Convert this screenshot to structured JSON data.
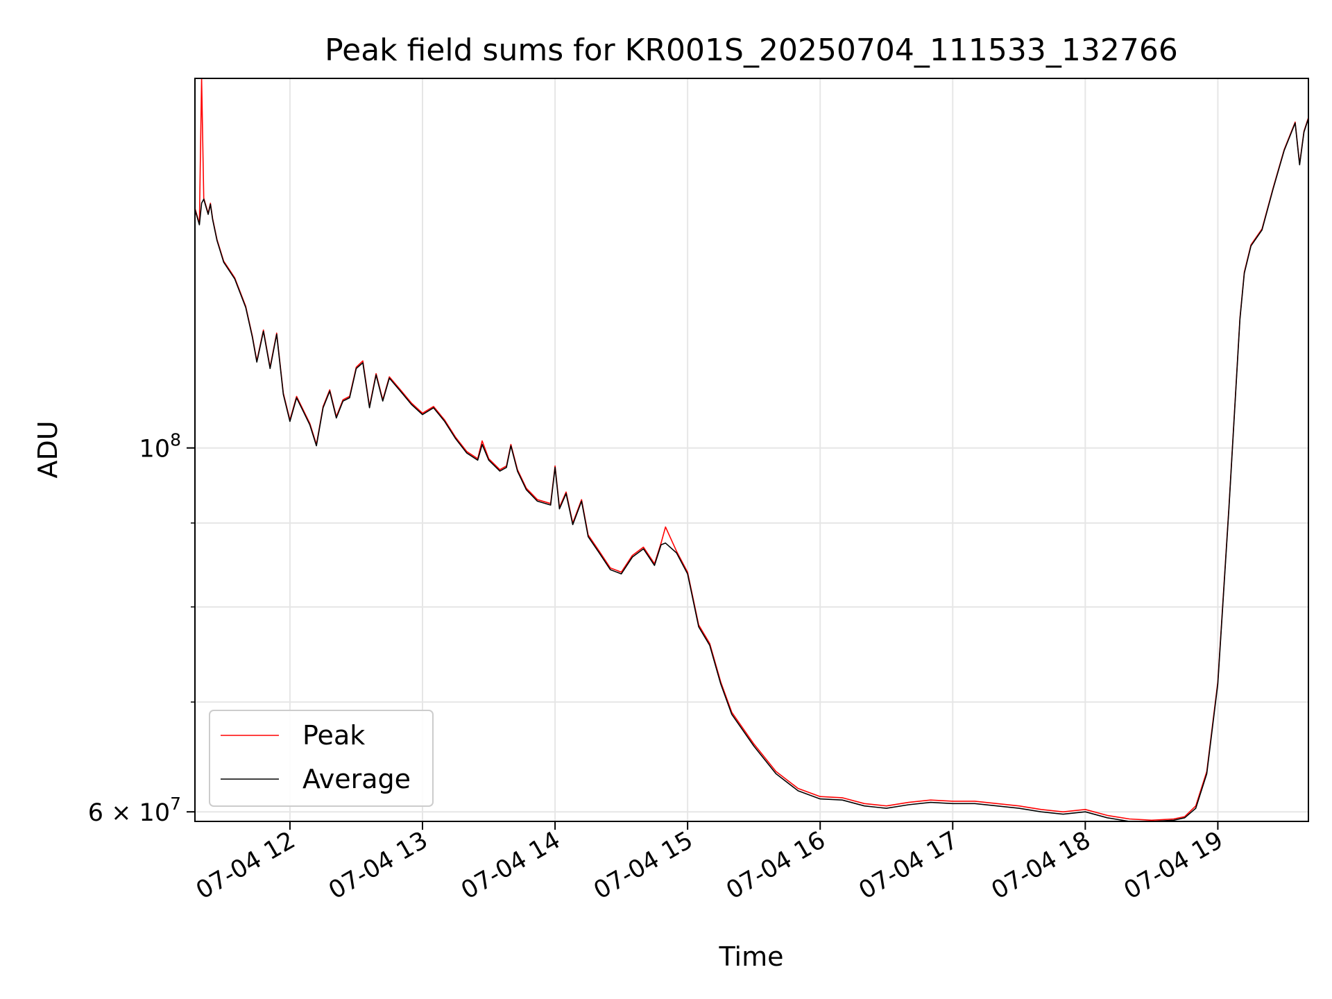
{
  "chart_data": {
    "type": "line",
    "title": "Peak field sums for KR001S_20250704_111533_132766",
    "xlabel": "Time",
    "ylabel": "ADU",
    "yscale": "log",
    "grid": true,
    "legend_position": "lower-left",
    "xlim": [
      "2025-07-04 11:17",
      "2025-07-04 19:41"
    ],
    "ylim": [
      59200000,
      168000000
    ],
    "x_tick_labels": [
      "07-04 12",
      "07-04 13",
      "07-04 14",
      "07-04 15",
      "07-04 16",
      "07-04 17",
      "07-04 18",
      "07-04 19"
    ],
    "y_tick_labels": [
      {
        "value": 100000000,
        "label": "10",
        "exp": "8"
      },
      {
        "value": 60000000,
        "label": "6 × 10",
        "exp": "7"
      }
    ],
    "series": [
      {
        "name": "Peak",
        "color": "#ff0000",
        "points": [
          [
            "2025-07-04 11:17",
            140000000
          ],
          [
            "2025-07-04 11:19",
            137000000
          ],
          [
            "2025-07-04 11:20",
            168000000
          ],
          [
            "2025-07-04 11:21",
            142000000
          ],
          [
            "2025-07-04 11:23",
            139000000
          ],
          [
            "2025-07-04 11:24",
            141000000
          ],
          [
            "2025-07-04 11:25",
            138000000
          ],
          [
            "2025-07-04 11:27",
            134000000
          ],
          [
            "2025-07-04 11:30",
            130000000
          ],
          [
            "2025-07-04 11:35",
            127000000
          ],
          [
            "2025-07-04 11:40",
            122000000
          ],
          [
            "2025-07-04 11:43",
            117000000
          ],
          [
            "2025-07-04 11:45",
            113000000
          ],
          [
            "2025-07-04 11:48",
            118000000
          ],
          [
            "2025-07-04 11:51",
            112000000
          ],
          [
            "2025-07-04 11:54",
            117500000
          ],
          [
            "2025-07-04 11:57",
            108000000
          ],
          [
            "2025-07-04 12:00",
            104000000
          ],
          [
            "2025-07-04 12:03",
            107500000
          ],
          [
            "2025-07-04 12:06",
            105500000
          ],
          [
            "2025-07-04 12:09",
            103500000
          ],
          [
            "2025-07-04 12:12",
            100500000
          ],
          [
            "2025-07-04 12:15",
            106000000
          ],
          [
            "2025-07-04 12:18",
            108500000
          ],
          [
            "2025-07-04 12:21",
            104500000
          ],
          [
            "2025-07-04 12:24",
            107000000
          ],
          [
            "2025-07-04 12:27",
            107500000
          ],
          [
            "2025-07-04 12:30",
            112000000
          ],
          [
            "2025-07-04 12:33",
            113000000
          ],
          [
            "2025-07-04 12:36",
            106000000
          ],
          [
            "2025-07-04 12:39",
            111000000
          ],
          [
            "2025-07-04 12:42",
            107000000
          ],
          [
            "2025-07-04 12:45",
            110500000
          ],
          [
            "2025-07-04 12:50",
            108500000
          ],
          [
            "2025-07-04 12:55",
            106500000
          ],
          [
            "2025-07-04 13:00",
            105000000
          ],
          [
            "2025-07-04 13:05",
            106000000
          ],
          [
            "2025-07-04 13:10",
            104000000
          ],
          [
            "2025-07-04 13:15",
            101500000
          ],
          [
            "2025-07-04 13:20",
            99500000
          ],
          [
            "2025-07-04 13:25",
            98500000
          ],
          [
            "2025-07-04 13:27",
            101000000
          ],
          [
            "2025-07-04 13:30",
            98500000
          ],
          [
            "2025-07-04 13:35",
            97000000
          ],
          [
            "2025-07-04 13:38",
            97500000
          ],
          [
            "2025-07-04 13:40",
            100500000
          ],
          [
            "2025-07-04 13:43",
            97000000
          ],
          [
            "2025-07-04 13:47",
            94500000
          ],
          [
            "2025-07-04 13:52",
            93000000
          ],
          [
            "2025-07-04 13:58",
            92500000
          ],
          [
            "2025-07-04 14:00",
            97500000
          ],
          [
            "2025-07-04 14:02",
            92000000
          ],
          [
            "2025-07-04 14:05",
            94000000
          ],
          [
            "2025-07-04 14:08",
            90000000
          ],
          [
            "2025-07-04 14:12",
            93000000
          ],
          [
            "2025-07-04 14:15",
            88500000
          ],
          [
            "2025-07-04 14:20",
            86500000
          ],
          [
            "2025-07-04 14:25",
            84500000
          ],
          [
            "2025-07-04 14:30",
            84000000
          ],
          [
            "2025-07-04 14:35",
            86000000
          ],
          [
            "2025-07-04 14:40",
            87000000
          ],
          [
            "2025-07-04 14:45",
            85000000
          ],
          [
            "2025-07-04 14:48",
            87500000
          ],
          [
            "2025-07-04 14:50",
            89500000
          ],
          [
            "2025-07-04 14:55",
            86500000
          ],
          [
            "2025-07-04 15:00",
            84000000
          ],
          [
            "2025-07-04 15:05",
            78000000
          ],
          [
            "2025-07-04 15:10",
            76000000
          ],
          [
            "2025-07-04 15:15",
            72000000
          ],
          [
            "2025-07-04 15:20",
            69000000
          ],
          [
            "2025-07-04 15:30",
            66000000
          ],
          [
            "2025-07-04 15:40",
            63500000
          ],
          [
            "2025-07-04 15:50",
            62000000
          ],
          [
            "2025-07-04 16:00",
            61300000
          ],
          [
            "2025-07-04 16:10",
            61200000
          ],
          [
            "2025-07-04 16:20",
            60700000
          ],
          [
            "2025-07-04 16:30",
            60500000
          ],
          [
            "2025-07-04 16:40",
            60800000
          ],
          [
            "2025-07-04 16:50",
            61000000
          ],
          [
            "2025-07-04 17:00",
            60900000
          ],
          [
            "2025-07-04 17:10",
            60900000
          ],
          [
            "2025-07-04 17:20",
            60700000
          ],
          [
            "2025-07-04 17:30",
            60500000
          ],
          [
            "2025-07-04 17:40",
            60200000
          ],
          [
            "2025-07-04 17:50",
            60000000
          ],
          [
            "2025-07-04 18:00",
            60200000
          ],
          [
            "2025-07-04 18:10",
            59700000
          ],
          [
            "2025-07-04 18:20",
            59400000
          ],
          [
            "2025-07-04 18:30",
            59300000
          ],
          [
            "2025-07-04 18:40",
            59400000
          ],
          [
            "2025-07-04 18:45",
            59600000
          ],
          [
            "2025-07-04 18:50",
            60500000
          ],
          [
            "2025-07-04 18:55",
            63500000
          ],
          [
            "2025-07-04 19:00",
            72000000
          ],
          [
            "2025-07-04 19:05",
            92000000
          ],
          [
            "2025-07-04 19:10",
            120000000
          ],
          [
            "2025-07-04 19:12",
            128000000
          ],
          [
            "2025-07-04 19:15",
            133000000
          ],
          [
            "2025-07-04 19:20",
            136000000
          ],
          [
            "2025-07-04 19:25",
            144000000
          ],
          [
            "2025-07-04 19:30",
            152000000
          ],
          [
            "2025-07-04 19:35",
            158000000
          ],
          [
            "2025-07-04 19:37",
            149000000
          ],
          [
            "2025-07-04 19:39",
            156000000
          ],
          [
            "2025-07-04 19:41",
            159000000
          ]
        ]
      },
      {
        "name": "Average",
        "color": "#000000",
        "points": [
          [
            "2025-07-04 11:17",
            139800000
          ],
          [
            "2025-07-04 11:19",
            136800000
          ],
          [
            "2025-07-04 11:20",
            141000000
          ],
          [
            "2025-07-04 11:21",
            141800000
          ],
          [
            "2025-07-04 11:23",
            138800000
          ],
          [
            "2025-07-04 11:24",
            140800000
          ],
          [
            "2025-07-04 11:25",
            137800000
          ],
          [
            "2025-07-04 11:27",
            133800000
          ],
          [
            "2025-07-04 11:30",
            129800000
          ],
          [
            "2025-07-04 11:35",
            126800000
          ],
          [
            "2025-07-04 11:40",
            121800000
          ],
          [
            "2025-07-04 11:43",
            116800000
          ],
          [
            "2025-07-04 11:45",
            112800000
          ],
          [
            "2025-07-04 11:48",
            117800000
          ],
          [
            "2025-07-04 11:51",
            111800000
          ],
          [
            "2025-07-04 11:54",
            117300000
          ],
          [
            "2025-07-04 11:57",
            107800000
          ],
          [
            "2025-07-04 12:00",
            103800000
          ],
          [
            "2025-07-04 12:03",
            107300000
          ],
          [
            "2025-07-04 12:06",
            105300000
          ],
          [
            "2025-07-04 12:09",
            103300000
          ],
          [
            "2025-07-04 12:12",
            100300000
          ],
          [
            "2025-07-04 12:15",
            105800000
          ],
          [
            "2025-07-04 12:18",
            108300000
          ],
          [
            "2025-07-04 12:21",
            104300000
          ],
          [
            "2025-07-04 12:24",
            106800000
          ],
          [
            "2025-07-04 12:27",
            107300000
          ],
          [
            "2025-07-04 12:30",
            111800000
          ],
          [
            "2025-07-04 12:33",
            112700000
          ],
          [
            "2025-07-04 12:36",
            105800000
          ],
          [
            "2025-07-04 12:39",
            110800000
          ],
          [
            "2025-07-04 12:42",
            106800000
          ],
          [
            "2025-07-04 12:45",
            110300000
          ],
          [
            "2025-07-04 12:50",
            108300000
          ],
          [
            "2025-07-04 12:55",
            106300000
          ],
          [
            "2025-07-04 13:00",
            104800000
          ],
          [
            "2025-07-04 13:05",
            105800000
          ],
          [
            "2025-07-04 13:10",
            103800000
          ],
          [
            "2025-07-04 13:15",
            101300000
          ],
          [
            "2025-07-04 13:20",
            99300000
          ],
          [
            "2025-07-04 13:25",
            98300000
          ],
          [
            "2025-07-04 13:27",
            100500000
          ],
          [
            "2025-07-04 13:30",
            98300000
          ],
          [
            "2025-07-04 13:35",
            96800000
          ],
          [
            "2025-07-04 13:38",
            97300000
          ],
          [
            "2025-07-04 13:40",
            100300000
          ],
          [
            "2025-07-04 13:43",
            96800000
          ],
          [
            "2025-07-04 13:47",
            94300000
          ],
          [
            "2025-07-04 13:52",
            92800000
          ],
          [
            "2025-07-04 13:58",
            92300000
          ],
          [
            "2025-07-04 14:00",
            97300000
          ],
          [
            "2025-07-04 14:02",
            91800000
          ],
          [
            "2025-07-04 14:05",
            93800000
          ],
          [
            "2025-07-04 14:08",
            89800000
          ],
          [
            "2025-07-04 14:12",
            92800000
          ],
          [
            "2025-07-04 14:15",
            88300000
          ],
          [
            "2025-07-04 14:20",
            86300000
          ],
          [
            "2025-07-04 14:25",
            84300000
          ],
          [
            "2025-07-04 14:30",
            83800000
          ],
          [
            "2025-07-04 14:35",
            85800000
          ],
          [
            "2025-07-04 14:40",
            86800000
          ],
          [
            "2025-07-04 14:45",
            84800000
          ],
          [
            "2025-07-04 14:48",
            87300000
          ],
          [
            "2025-07-04 14:50",
            87500000
          ],
          [
            "2025-07-04 14:55",
            86300000
          ],
          [
            "2025-07-04 15:00",
            83800000
          ],
          [
            "2025-07-04 15:05",
            77800000
          ],
          [
            "2025-07-04 15:10",
            75800000
          ],
          [
            "2025-07-04 15:15",
            71800000
          ],
          [
            "2025-07-04 15:20",
            68800000
          ],
          [
            "2025-07-04 15:30",
            65800000
          ],
          [
            "2025-07-04 15:40",
            63300000
          ],
          [
            "2025-07-04 15:50",
            61800000
          ],
          [
            "2025-07-04 16:00",
            61100000
          ],
          [
            "2025-07-04 16:10",
            61000000
          ],
          [
            "2025-07-04 16:20",
            60500000
          ],
          [
            "2025-07-04 16:30",
            60300000
          ],
          [
            "2025-07-04 16:40",
            60600000
          ],
          [
            "2025-07-04 16:50",
            60800000
          ],
          [
            "2025-07-04 17:00",
            60700000
          ],
          [
            "2025-07-04 17:10",
            60700000
          ],
          [
            "2025-07-04 17:20",
            60500000
          ],
          [
            "2025-07-04 17:30",
            60300000
          ],
          [
            "2025-07-04 17:40",
            60000000
          ],
          [
            "2025-07-04 17:50",
            59800000
          ],
          [
            "2025-07-04 18:00",
            60000000
          ],
          [
            "2025-07-04 18:10",
            59500000
          ],
          [
            "2025-07-04 18:20",
            59200000
          ],
          [
            "2025-07-04 18:30",
            59200000
          ],
          [
            "2025-07-04 18:40",
            59300000
          ],
          [
            "2025-07-04 18:45",
            59500000
          ],
          [
            "2025-07-04 18:50",
            60300000
          ],
          [
            "2025-07-04 18:55",
            63300000
          ],
          [
            "2025-07-04 19:00",
            71800000
          ],
          [
            "2025-07-04 19:05",
            91800000
          ],
          [
            "2025-07-04 19:10",
            119800000
          ],
          [
            "2025-07-04 19:12",
            127800000
          ],
          [
            "2025-07-04 19:15",
            132800000
          ],
          [
            "2025-07-04 19:20",
            135800000
          ],
          [
            "2025-07-04 19:25",
            143800000
          ],
          [
            "2025-07-04 19:30",
            151800000
          ],
          [
            "2025-07-04 19:35",
            157800000
          ],
          [
            "2025-07-04 19:37",
            148800000
          ],
          [
            "2025-07-04 19:39",
            155800000
          ],
          [
            "2025-07-04 19:41",
            158800000
          ]
        ]
      }
    ]
  }
}
